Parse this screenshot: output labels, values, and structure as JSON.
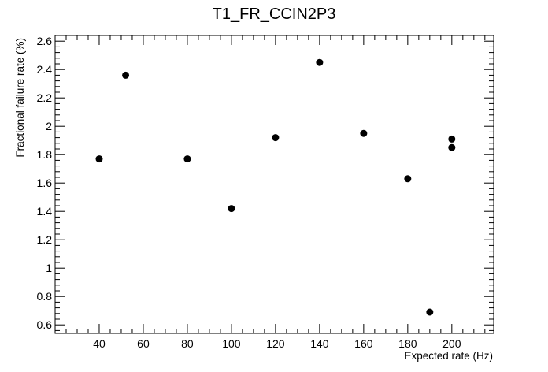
{
  "chart_data": {
    "type": "scatter",
    "title": "T1_FR_CCIN2P3",
    "xlabel": "Expected rate (Hz)",
    "ylabel": "Fractional failure rate (%)",
    "xlim": [
      20,
      219
    ],
    "ylim": [
      0.54,
      2.64
    ],
    "x_ticks": [
      40,
      60,
      80,
      100,
      120,
      140,
      160,
      180,
      200
    ],
    "y_ticks": [
      0.6,
      0.8,
      1,
      1.2,
      1.4,
      1.6,
      1.8,
      2,
      2.2,
      2.4,
      2.6
    ],
    "grid": false,
    "marker_color": "#000000",
    "points": [
      {
        "x": 40,
        "y": 1.77
      },
      {
        "x": 52,
        "y": 2.36
      },
      {
        "x": 80,
        "y": 1.77
      },
      {
        "x": 100,
        "y": 1.42
      },
      {
        "x": 120,
        "y": 1.92
      },
      {
        "x": 140,
        "y": 2.45
      },
      {
        "x": 160,
        "y": 1.95
      },
      {
        "x": 180,
        "y": 1.63
      },
      {
        "x": 190,
        "y": 0.69
      },
      {
        "x": 200,
        "y": 1.85
      },
      {
        "x": 200,
        "y": 1.91
      }
    ]
  }
}
